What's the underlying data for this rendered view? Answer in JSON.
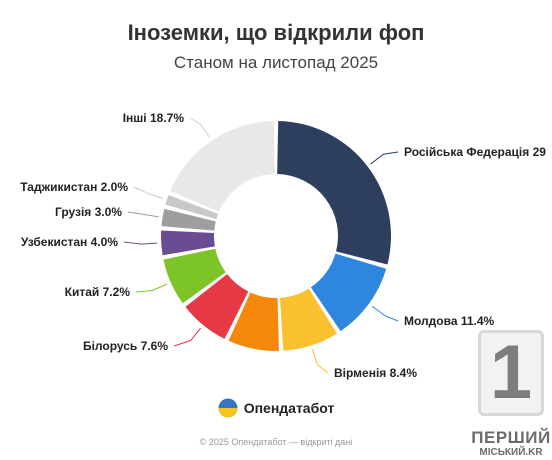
{
  "brand": {
    "name": "Опендатабот",
    "flag_colors": [
      "#3a75c4",
      "#f5c518"
    ]
  },
  "footer": "© 2025 Опендатабот — відкриті дані",
  "watermark": {
    "number": "1",
    "line1": "ПЕРШИЙ",
    "line2": "МІСЬКИЙ.KR"
  },
  "chart_data": {
    "type": "pie",
    "title": "Іноземки, що відкрили фоп",
    "subtitle": "Станом на листопад 2025",
    "donut": true,
    "slices": [
      {
        "label": "Російська Федерація 29",
        "value": 29.0,
        "color": "#2d3e5e"
      },
      {
        "label": "Молдова 11.4%",
        "value": 11.4,
        "color": "#2e86de"
      },
      {
        "label": "Вірменія 8.4%",
        "value": 8.4,
        "color": "#fbc02d"
      },
      {
        "label": "",
        "value": 7.7,
        "color": "#f5870a"
      },
      {
        "label": "Білорусь 7.6%",
        "value": 7.6,
        "color": "#e53945"
      },
      {
        "label": "Китай 7.2%",
        "value": 7.2,
        "color": "#7cc427"
      },
      {
        "label": "Узбекистан 4.0%",
        "value": 4.0,
        "color": "#6a4c93"
      },
      {
        "label": "Грузія 3.0%",
        "value": 3.0,
        "color": "#9e9e9e"
      },
      {
        "label": "Таджикистан 2.0%",
        "value": 2.0,
        "color": "#c8c8c8"
      },
      {
        "label": "Інші 18.7%",
        "value": 18.7,
        "color": "#e8e8e8"
      }
    ]
  }
}
